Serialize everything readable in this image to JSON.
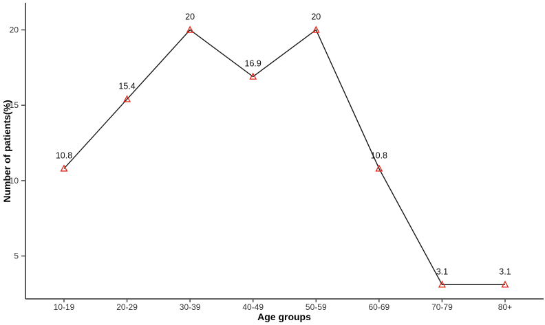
{
  "chart": {
    "xlabel": "Age groups",
    "ylabel": "Number of patients(%)"
  },
  "chart_data": {
    "type": "line",
    "title": "",
    "categories": [
      "10-19",
      "20-29",
      "30-39",
      "40-49",
      "50-59",
      "60-69",
      "70-79",
      "80+"
    ],
    "values": [
      10.8,
      15.4,
      20,
      16.9,
      20,
      10.8,
      3.1,
      3.1
    ],
    "point_labels": [
      "10.8",
      "15.4",
      "20",
      "16.9",
      "20",
      "10.8",
      "3.1",
      "3.1"
    ],
    "xlabel": "Age groups",
    "ylabel": "Number of patients(%)",
    "yticks": [
      5,
      10,
      15,
      20
    ],
    "ylim": [
      2.2,
      21.8
    ],
    "grid": false,
    "legend_position": "none",
    "line_color": "#1a1a1a",
    "marker": "open-triangle",
    "marker_color": "#e02517",
    "axis_color": "#4d4d4d",
    "label_color": "#111111",
    "background_color": "#ffffff"
  }
}
